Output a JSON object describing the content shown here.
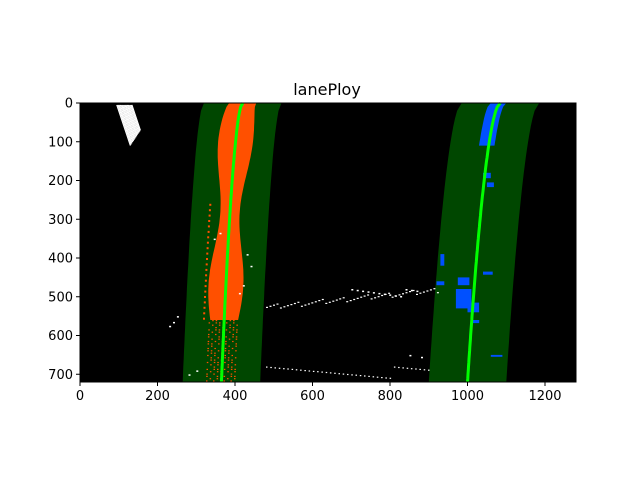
{
  "figure": {
    "title": "lanePloy",
    "background": "#ffffff"
  },
  "image": {
    "width": 1280,
    "height": 720,
    "background": "#000000"
  },
  "axes": {
    "x_ticks": [
      0,
      200,
      400,
      600,
      800,
      1000,
      1200
    ],
    "y_ticks": [
      0,
      100,
      200,
      300,
      400,
      500,
      600,
      700
    ]
  },
  "colors": {
    "lane_window_fill": "#004700",
    "left_lane_pixels": "#ff5000",
    "right_lane_pixels": "#0050ff",
    "fitted_line": "#00ff00",
    "noise_pixels": "#ffffff"
  },
  "lanes": {
    "window_margin": 100,
    "left_fit": {
      "at_y0": 420,
      "at_y720": 365
    },
    "right_fit": {
      "at_y0": 1085,
      "at_y720": 1000
    }
  }
}
